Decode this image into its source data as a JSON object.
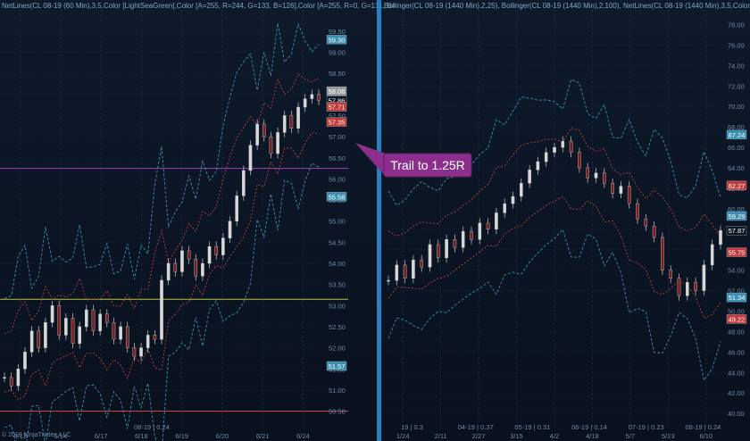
{
  "chart_data": [
    {
      "type": "line",
      "name_hint": "left-panel",
      "header": "NetLines(CL 08-19 (60 Min),3,5,Color [LightSeaGreen],Color [A=255, R=244, G=133, B=126],Color [A=255, R=0, G=131, B=",
      "yaxis_labels": [
        "59.50",
        "59.00",
        "58.50",
        "58.00",
        "57.50",
        "57.00",
        "56.50",
        "56.00",
        "55.50",
        "55.00",
        "54.50",
        "54.00",
        "53.50",
        "53.00",
        "52.50",
        "52.00",
        "51.50",
        "51.00",
        "50.50"
      ],
      "ylim": [
        50.3,
        59.9
      ],
      "xaxis_labels": [
        "6/13",
        "6/14",
        "6/17",
        "6/18",
        "6/19",
        "6/20",
        "6/21",
        "6/24"
      ],
      "x_center_label": "08-19 | 0.24",
      "price_tags": [
        {
          "text": "59.30",
          "value": 59.3,
          "color": "#3a8fb0"
        },
        {
          "text": "58.08",
          "value": 58.08,
          "color": "#9a9a9a"
        },
        {
          "text": "57.86",
          "value": 57.86,
          "color": "#0d1622"
        },
        {
          "text": "57.71",
          "value": 57.71,
          "color": "#c23a3a"
        },
        {
          "text": "57.35",
          "value": 57.35,
          "color": "#c23a3a"
        },
        {
          "text": "55.58",
          "value": 55.58,
          "color": "#3a8fb0"
        },
        {
          "text": "51.57",
          "value": 51.57,
          "color": "#3a8fb0"
        }
      ],
      "horizontal_lines": [
        {
          "value": 56.25,
          "color": "#a040c0"
        },
        {
          "value": 53.15,
          "color": "#b8c040"
        },
        {
          "value": 50.5,
          "color": "#d04040"
        }
      ],
      "price_path": [
        51.3,
        51.1,
        51.5,
        51.9,
        52.4,
        52.0,
        52.6,
        53.0,
        52.3,
        52.7,
        52.1,
        52.5,
        52.9,
        52.4,
        52.8,
        52.6,
        52.2,
        52.5,
        52.0,
        51.8,
        52.0,
        52.3,
        52.2,
        53.6,
        54.0,
        53.8,
        54.3,
        54.1,
        53.7,
        54.0,
        54.4,
        54.2,
        54.6,
        55.0,
        55.6,
        56.2,
        56.8,
        57.3,
        57.0,
        56.6,
        57.1,
        57.5,
        57.2,
        57.7,
        57.9,
        58.0,
        57.86
      ]
    },
    {
      "type": "line",
      "name_hint": "right-panel",
      "header": "Bollinger(CL 08-19 (1440 Min),2,25), Bollinger(CL 08-19 (1440 Min),2,100), NetLines(CL 08-19 (1440 Min),3,5,Color [Lig",
      "yaxis_labels": [
        "78.00",
        "76.00",
        "74.00",
        "72.00",
        "70.00",
        "68.00",
        "66.00",
        "64.00",
        "62.00",
        "60.00",
        "58.00",
        "56.00",
        "54.00",
        "52.00",
        "50.00",
        "48.00",
        "46.00",
        "44.00",
        "42.00",
        "40.00"
      ],
      "ylim": [
        39.4,
        79.0
      ],
      "xaxis_labels": [
        "1/24",
        "2/11",
        "2/27",
        "3/15",
        "4/2",
        "4/18",
        "5/7",
        "5/23",
        "6/10"
      ],
      "x_bottom_labels": [
        "19 | 0.3",
        "04-19 | 0.37",
        "05-19 | 0.31",
        "06-19 | 0.14",
        "07-19 | 0.23",
        "08-19 | 0.24"
      ],
      "price_tags": [
        {
          "text": "67.24",
          "value": 67.24,
          "color": "#3a8fb0"
        },
        {
          "text": "62.27",
          "value": 62.27,
          "color": "#c23a3a"
        },
        {
          "text": "59.29",
          "value": 59.29,
          "color": "#3a8fb0"
        },
        {
          "text": "57.87",
          "value": 57.87,
          "color": "#0d1622"
        },
        {
          "text": "55.75",
          "value": 55.75,
          "color": "#c23a3a"
        },
        {
          "text": "51.34",
          "value": 51.34,
          "color": "#3a8fb0"
        },
        {
          "text": "49.22",
          "value": 49.22,
          "color": "#c23a3a"
        }
      ],
      "price_path": [
        53.0,
        54.5,
        53.2,
        55.0,
        54.3,
        56.5,
        55.2,
        57.0,
        56.2,
        57.8,
        57.0,
        58.6,
        58.0,
        59.6,
        60.5,
        61.2,
        62.5,
        63.8,
        64.6,
        65.5,
        66.0,
        66.6,
        65.5,
        64.0,
        63.0,
        63.5,
        62.5,
        61.5,
        62.2,
        60.5,
        59.0,
        58.3,
        57.2,
        54.0,
        53.2,
        51.5,
        52.8,
        52.0,
        54.5,
        56.5,
        57.87
      ]
    },
    {
      "type": "annotation",
      "text": "Trail to 1.25R",
      "color": "#8c2f8c"
    }
  ],
  "copyright": "© 2019 NinjaTrader, LLC"
}
